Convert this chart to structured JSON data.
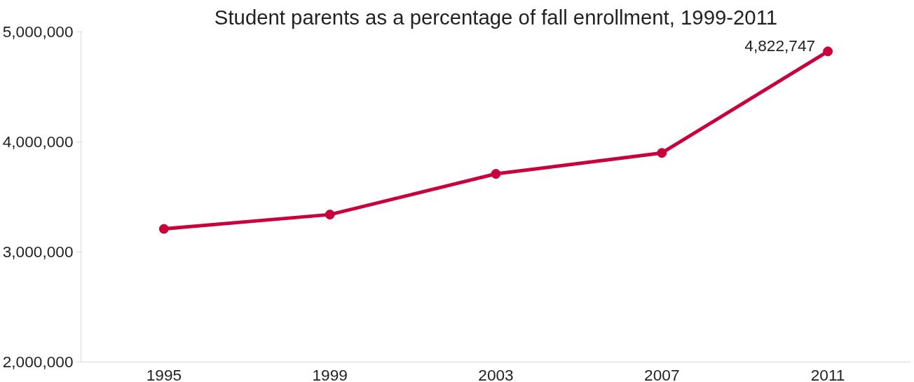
{
  "chart_data": {
    "type": "line",
    "title": "Student parents as a percentage of fall enrollment, 1999-2011",
    "categories": [
      "1995",
      "1999",
      "2003",
      "2007",
      "2011"
    ],
    "series": [
      {
        "color": "#c8003c",
        "values": [
          3210000,
          3340000,
          3710000,
          3900000,
          4822747
        ],
        "value_labels": [
          null,
          null,
          null,
          null,
          "4,822,747"
        ]
      }
    ],
    "ylim": [
      2000000,
      5000000
    ],
    "yticks": [
      {
        "value": 2000000,
        "label": "2,000,000"
      },
      {
        "value": 3000000,
        "label": "3,000,000"
      },
      {
        "value": 4000000,
        "label": "4,000,000"
      },
      {
        "value": 5000000,
        "label": "5,000,000"
      }
    ],
    "grid": false,
    "marker": "circle",
    "line_style": "solid"
  }
}
